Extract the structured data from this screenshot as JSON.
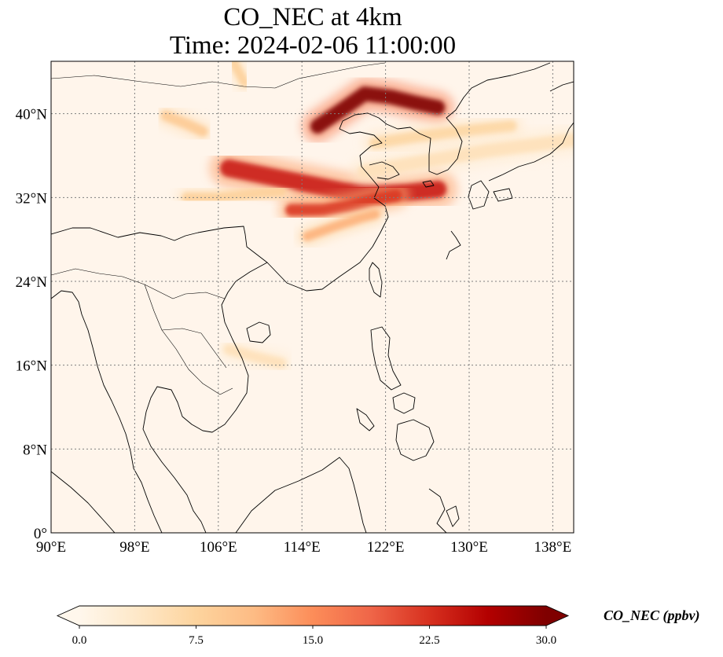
{
  "title": {
    "line1": "CO_NEC at 4km",
    "line2": "Time: 2024-02-06 11:00:00"
  },
  "map": {
    "lon_range": [
      90,
      140
    ],
    "lat_range": [
      0,
      45
    ],
    "lon_ticks": [
      {
        "value": 90,
        "label": "90°E"
      },
      {
        "value": 98,
        "label": "98°E"
      },
      {
        "value": 106,
        "label": "106°E"
      },
      {
        "value": 114,
        "label": "114°E"
      },
      {
        "value": 122,
        "label": "122°E"
      },
      {
        "value": 130,
        "label": "130°E"
      },
      {
        "value": 138,
        "label": "138°E"
      }
    ],
    "lat_ticks": [
      {
        "value": 0,
        "label": "0°"
      },
      {
        "value": 8,
        "label": "8°N"
      },
      {
        "value": 16,
        "label": "16°N"
      },
      {
        "value": 24,
        "label": "24°N"
      },
      {
        "value": 32,
        "label": "32°N"
      },
      {
        "value": 40,
        "label": "40°N"
      }
    ],
    "gridlines": true,
    "background_color": "#fff5eb",
    "coastline_color": "#000000"
  },
  "colorbar": {
    "label": "CO_NEC (ppbv)",
    "min": 0.0,
    "max": 30.0,
    "extend": "both",
    "colormap": "OrRd",
    "colors": [
      "#fff7ec",
      "#fee8c8",
      "#fdd49e",
      "#fdbb84",
      "#fc8d59",
      "#ef6548",
      "#d7301f",
      "#b30000",
      "#7f0000"
    ],
    "ticks": [
      {
        "value": 0.0,
        "label": "0.0"
      },
      {
        "value": 7.5,
        "label": "7.5"
      },
      {
        "value": 15.0,
        "label": "15.0"
      },
      {
        "value": 22.5,
        "label": "22.5"
      },
      {
        "value": 30.0,
        "label": "30.0"
      }
    ]
  },
  "plumes": [
    {
      "name": "north-china-northeast",
      "value": 30,
      "path": [
        [
          115.5,
          38.8
        ],
        [
          118,
          40.5
        ],
        [
          120,
          41.9
        ],
        [
          122.5,
          41.6
        ],
        [
          125,
          41.0
        ],
        [
          127,
          40.6
        ]
      ],
      "width_deg": 1.4
    },
    {
      "name": "yellow-sea-central",
      "value": 24,
      "path": [
        [
          107,
          34.8
        ],
        [
          111,
          34.0
        ],
        [
          114.5,
          33.3
        ],
        [
          118,
          32.6
        ],
        [
          121,
          32.4
        ],
        [
          124,
          32.5
        ],
        [
          127,
          32.8
        ]
      ],
      "width_deg": 1.7
    },
    {
      "name": "east-china-south",
      "value": 22,
      "path": [
        [
          113,
          30.8
        ],
        [
          116,
          30.8
        ],
        [
          118.5,
          31.2
        ],
        [
          121,
          31.8
        ],
        [
          123,
          32.2
        ]
      ],
      "width_deg": 1.2
    },
    {
      "name": "southern-streak",
      "value": 12,
      "path": [
        [
          114.5,
          28.3
        ],
        [
          117,
          29.2
        ],
        [
          119.5,
          30.0
        ],
        [
          121,
          30.4
        ]
      ],
      "width_deg": 0.9
    },
    {
      "name": "japan-sea-streak",
      "value": 7,
      "path": [
        [
          121,
          37.2
        ],
        [
          125,
          37.8
        ],
        [
          129,
          38.3
        ],
        [
          134,
          38.8
        ]
      ],
      "width_deg": 1.1
    },
    {
      "name": "west-tail",
      "value": 8,
      "path": [
        [
          103,
          32.0
        ],
        [
          106,
          32.0
        ],
        [
          109,
          32.3
        ],
        [
          112,
          32.6
        ]
      ],
      "width_deg": 1.0
    },
    {
      "name": "north-west-spot",
      "value": 9,
      "path": [
        [
          101,
          39.8
        ],
        [
          103,
          39.0
        ],
        [
          104.5,
          38.3
        ]
      ],
      "width_deg": 1.0
    },
    {
      "name": "mongolia-spot",
      "value": 8,
      "path": [
        [
          107.5,
          44.8
        ],
        [
          108,
          43.9
        ],
        [
          108.5,
          43.0
        ]
      ],
      "width_deg": 0.9
    },
    {
      "name": "pacific-streak",
      "value": 5,
      "path": [
        [
          120,
          34.5
        ],
        [
          126,
          35.5
        ],
        [
          132,
          36.5
        ],
        [
          140,
          37.5
        ]
      ],
      "width_deg": 1.3
    },
    {
      "name": "south-china-sea-haze",
      "value": 5,
      "path": [
        [
          107,
          17.5
        ],
        [
          109.5,
          16.8
        ],
        [
          112,
          16.2
        ]
      ],
      "width_deg": 1.0
    }
  ]
}
